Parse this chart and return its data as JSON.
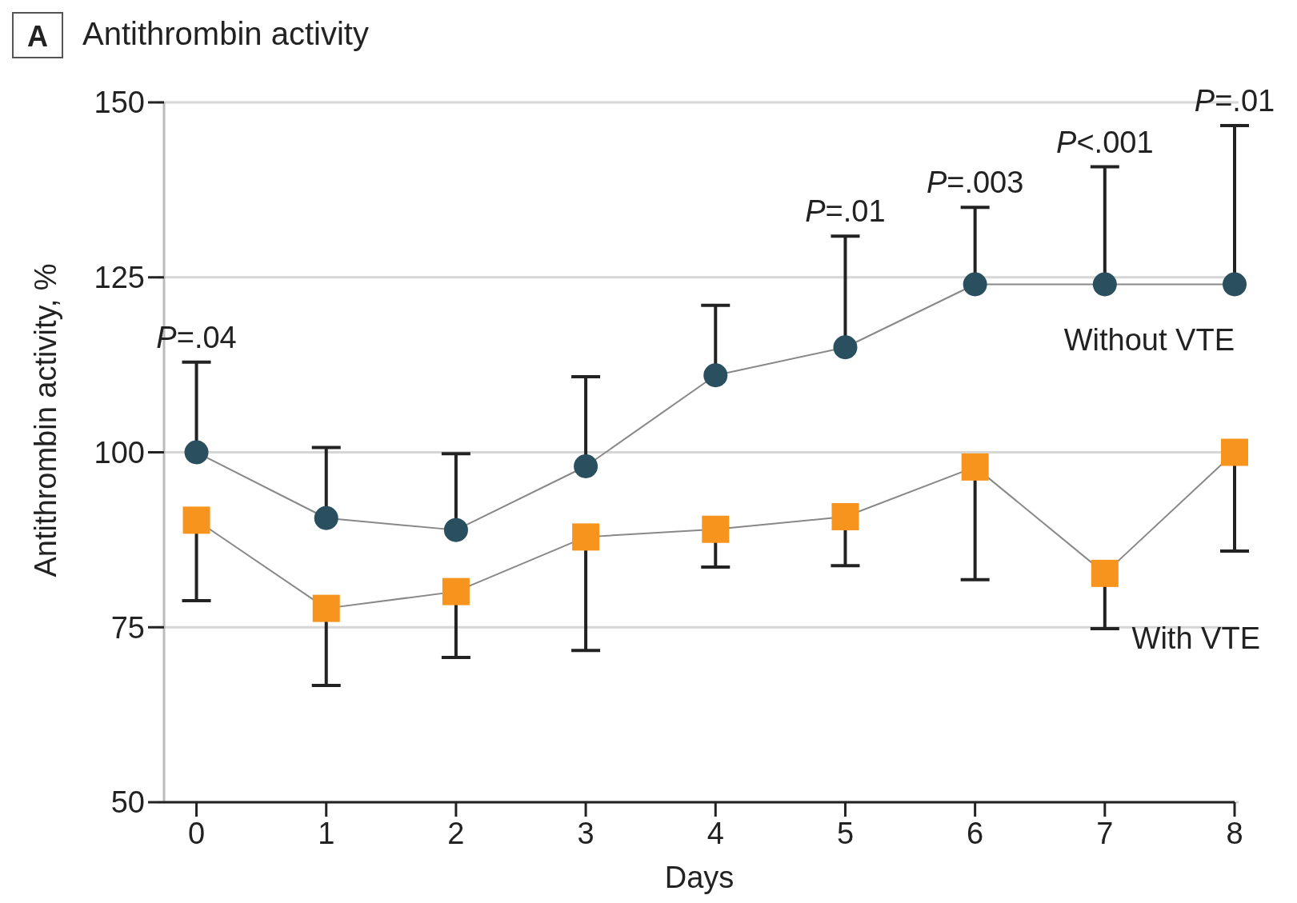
{
  "chart_data": {
    "type": "line",
    "title": "Antithrombin activity",
    "xlabel": "Days",
    "ylabel": "Antithrombin activity, %",
    "x": [
      0,
      1,
      2,
      3,
      4,
      5,
      6,
      7,
      8
    ],
    "series": [
      {
        "name": "Without VTE",
        "color": "#2a4f5e",
        "marker": "circle",
        "values": [
          100,
          90.6,
          88.9,
          98,
          111,
          115,
          124,
          124,
          124
        ],
        "errors": [
          [
            100,
            112.9
          ],
          [
            90.6,
            100.7
          ],
          [
            88.9,
            99.8
          ],
          [
            98,
            110.8
          ],
          [
            111,
            121
          ],
          [
            115,
            130.9
          ],
          [
            124,
            135
          ],
          [
            124,
            140.8
          ],
          [
            124,
            146.7
          ]
        ]
      },
      {
        "name": "With VTE",
        "color": "#f7941d",
        "marker": "square",
        "values": [
          90.3,
          77.7,
          80.1,
          87.9,
          89,
          90.8,
          97.9,
          82.7,
          100
        ],
        "errors": [
          [
            78.8,
            90.3
          ],
          [
            66.7,
            77.7
          ],
          [
            70.7,
            80.1
          ],
          [
            71.7,
            87.9
          ],
          [
            83.6,
            89
          ],
          [
            83.8,
            90.8
          ],
          [
            81.8,
            97.9
          ],
          [
            74.8,
            82.7
          ],
          [
            85.9,
            100
          ]
        ]
      }
    ],
    "xlim": [
      -0.25,
      8
    ],
    "xticks": [
      0,
      1,
      2,
      3,
      4,
      5,
      6,
      7,
      8
    ],
    "ylim": [
      50,
      150
    ],
    "yticks": [
      50,
      75,
      100,
      125,
      150
    ],
    "grid": "y",
    "line_style": "solid",
    "annotations": [
      "A",
      {
        "text": "P=.04",
        "x": 0,
        "y": 112.9
      },
      {
        "text": "P=.01",
        "x": 5,
        "y": 130.9
      },
      {
        "text": "P=.003",
        "x": 6,
        "y": 135
      },
      {
        "text": "P<.001",
        "x": 7,
        "y": 140.8
      },
      {
        "text": "P=.01",
        "x": 8,
        "y": 146.7
      }
    ]
  }
}
